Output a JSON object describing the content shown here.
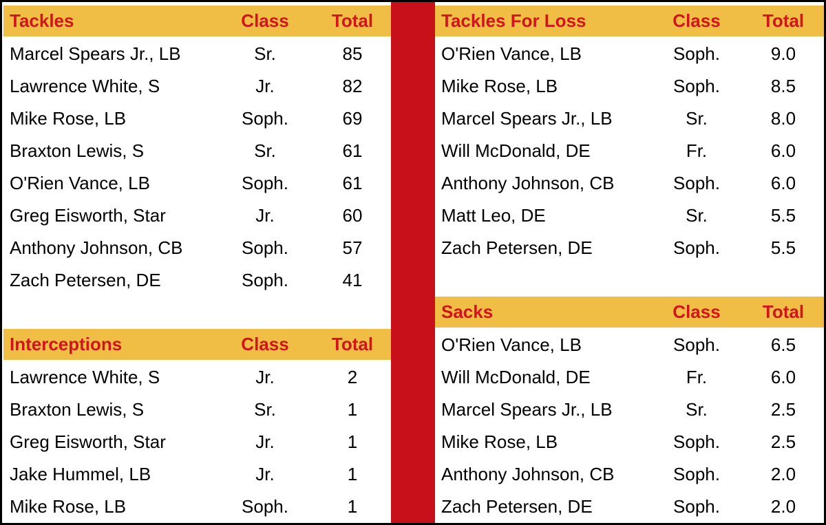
{
  "tables": [
    {
      "title": "Tackles",
      "headers": [
        "Class",
        "Total"
      ],
      "rows": [
        [
          "Marcel Spears Jr., LB",
          "Sr.",
          "85"
        ],
        [
          "Lawrence White, S",
          "Jr.",
          "82"
        ],
        [
          "Mike Rose, LB",
          "Soph.",
          "69"
        ],
        [
          "Braxton Lewis, S",
          "Sr.",
          "61"
        ],
        [
          "O'Rien Vance, LB",
          "Soph.",
          "61"
        ],
        [
          "Greg Eisworth, Star",
          "Jr.",
          "60"
        ],
        [
          "Anthony Johnson, CB",
          "Soph.",
          "57"
        ],
        [
          "Zach Petersen, DE",
          "Soph.",
          "41"
        ]
      ]
    },
    {
      "title": "Interceptions",
      "headers": [
        "Class",
        "Total"
      ],
      "rows": [
        [
          "Lawrence White, S",
          "Jr.",
          "2"
        ],
        [
          "Braxton Lewis, S",
          "Sr.",
          "1"
        ],
        [
          "Greg Eisworth, Star",
          "Jr.",
          "1"
        ],
        [
          "Jake Hummel, LB",
          "Jr.",
          "1"
        ],
        [
          "Mike Rose, LB",
          "Soph.",
          "1"
        ]
      ]
    },
    {
      "title": "Tackles For Loss",
      "headers": [
        "Class",
        "Total"
      ],
      "rows": [
        [
          "O'Rien Vance, LB",
          "Soph.",
          "9.0"
        ],
        [
          "Mike Rose, LB",
          "Soph.",
          "8.5"
        ],
        [
          "Marcel Spears Jr., LB",
          "Sr.",
          "8.0"
        ],
        [
          "Will McDonald, DE",
          "Fr.",
          "6.0"
        ],
        [
          "Anthony Johnson, CB",
          "Soph.",
          "6.0"
        ],
        [
          "Matt Leo, DE",
          "Sr.",
          "5.5"
        ],
        [
          "Zach Petersen, DE",
          "Soph.",
          "5.5"
        ]
      ]
    },
    {
      "title": "Sacks",
      "headers": [
        "Class",
        "Total"
      ],
      "rows": [
        [
          "O'Rien Vance, LB",
          "Soph.",
          "6.5"
        ],
        [
          "Will McDonald, DE",
          "Fr.",
          "6.0"
        ],
        [
          "Marcel Spears Jr., LB",
          "Sr.",
          "2.5"
        ],
        [
          "Mike Rose, LB",
          "Soph.",
          "2.5"
        ],
        [
          "Anthony Johnson, CB",
          "Soph.",
          "2.0"
        ],
        [
          "Zach Petersen, DE",
          "Soph.",
          "2.0"
        ]
      ]
    }
  ]
}
